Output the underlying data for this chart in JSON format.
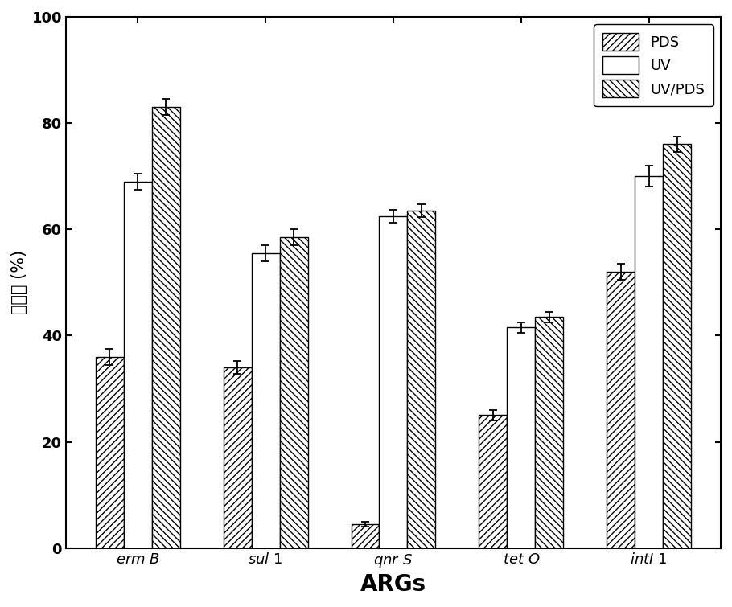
{
  "categories": [
    "erm B",
    "sul 1",
    "qnr S",
    "tet O",
    "intI 1"
  ],
  "series_names": [
    "PDS",
    "UV",
    "UV/PDS"
  ],
  "values": {
    "PDS": [
      36.0,
      34.0,
      4.5,
      25.0,
      52.0
    ],
    "UV": [
      69.0,
      55.5,
      62.5,
      41.5,
      70.0
    ],
    "UV/PDS": [
      83.0,
      58.5,
      63.5,
      43.5,
      76.0
    ]
  },
  "errors": {
    "PDS": [
      1.5,
      1.2,
      0.5,
      1.0,
      1.5
    ],
    "UV": [
      1.5,
      1.5,
      1.2,
      1.0,
      2.0
    ],
    "UV/PDS": [
      1.5,
      1.5,
      1.2,
      1.0,
      1.5
    ]
  },
  "hatches": {
    "PDS": "////",
    "UV": "====",
    "UV/PDS": "\\\\\\\\"
  },
  "ylabel": "去除率 (%)",
  "xlabel": "ARGs",
  "ylim": [
    0,
    100
  ],
  "yticks": [
    0,
    20,
    40,
    60,
    80,
    100
  ],
  "bar_width": 0.22,
  "legend_fontsize": 13,
  "ylabel_fontsize": 15,
  "xlabel_fontsize": 20,
  "tick_fontsize": 13,
  "cat_fontsize": 13,
  "background_color": "#ffffff"
}
